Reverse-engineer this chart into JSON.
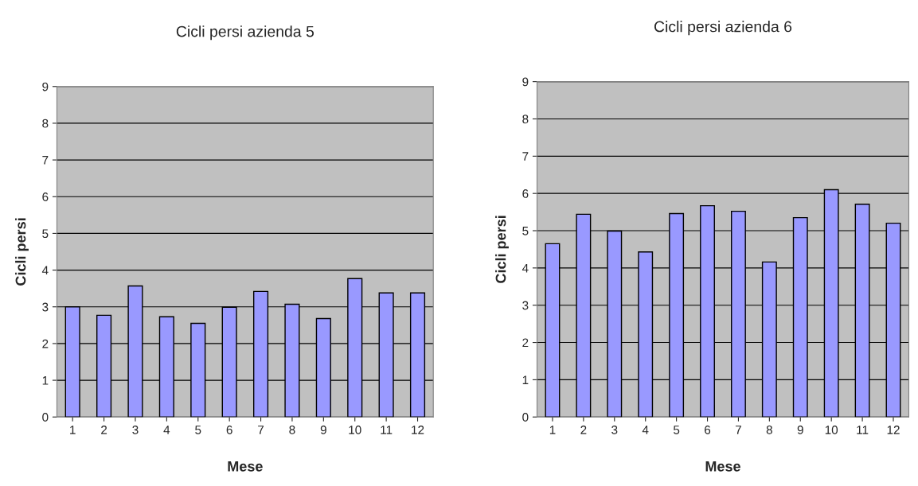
{
  "chart_data": [
    {
      "type": "bar",
      "title": "Cicli persi azienda 5",
      "xlabel": "Mese",
      "ylabel": "Cicli persi",
      "categories": [
        "1",
        "2",
        "3",
        "4",
        "5",
        "6",
        "7",
        "8",
        "9",
        "10",
        "11",
        "12"
      ],
      "values": [
        3.0,
        2.77,
        3.57,
        2.73,
        2.55,
        2.99,
        3.42,
        3.07,
        2.68,
        3.77,
        3.38,
        3.38
      ],
      "color": "#9999ff",
      "ylim": [
        0,
        9
      ],
      "yticks": [
        0,
        1,
        2,
        3,
        4,
        5,
        6,
        7,
        8,
        9
      ],
      "grid": "y"
    },
    {
      "type": "bar",
      "title": "Cicli persi azienda 6",
      "xlabel": "Mese",
      "ylabel": "Cicli persi",
      "categories": [
        "1",
        "2",
        "3",
        "4",
        "5",
        "6",
        "7",
        "8",
        "9",
        "10",
        "11",
        "12"
      ],
      "values": [
        4.65,
        5.44,
        4.99,
        4.43,
        5.46,
        5.67,
        5.52,
        4.16,
        5.35,
        6.1,
        5.71,
        5.2
      ],
      "color": "#9999ff",
      "ylim": [
        0,
        9
      ],
      "yticks": [
        0,
        1,
        2,
        3,
        4,
        5,
        6,
        7,
        8,
        9
      ],
      "grid": "y"
    }
  ]
}
